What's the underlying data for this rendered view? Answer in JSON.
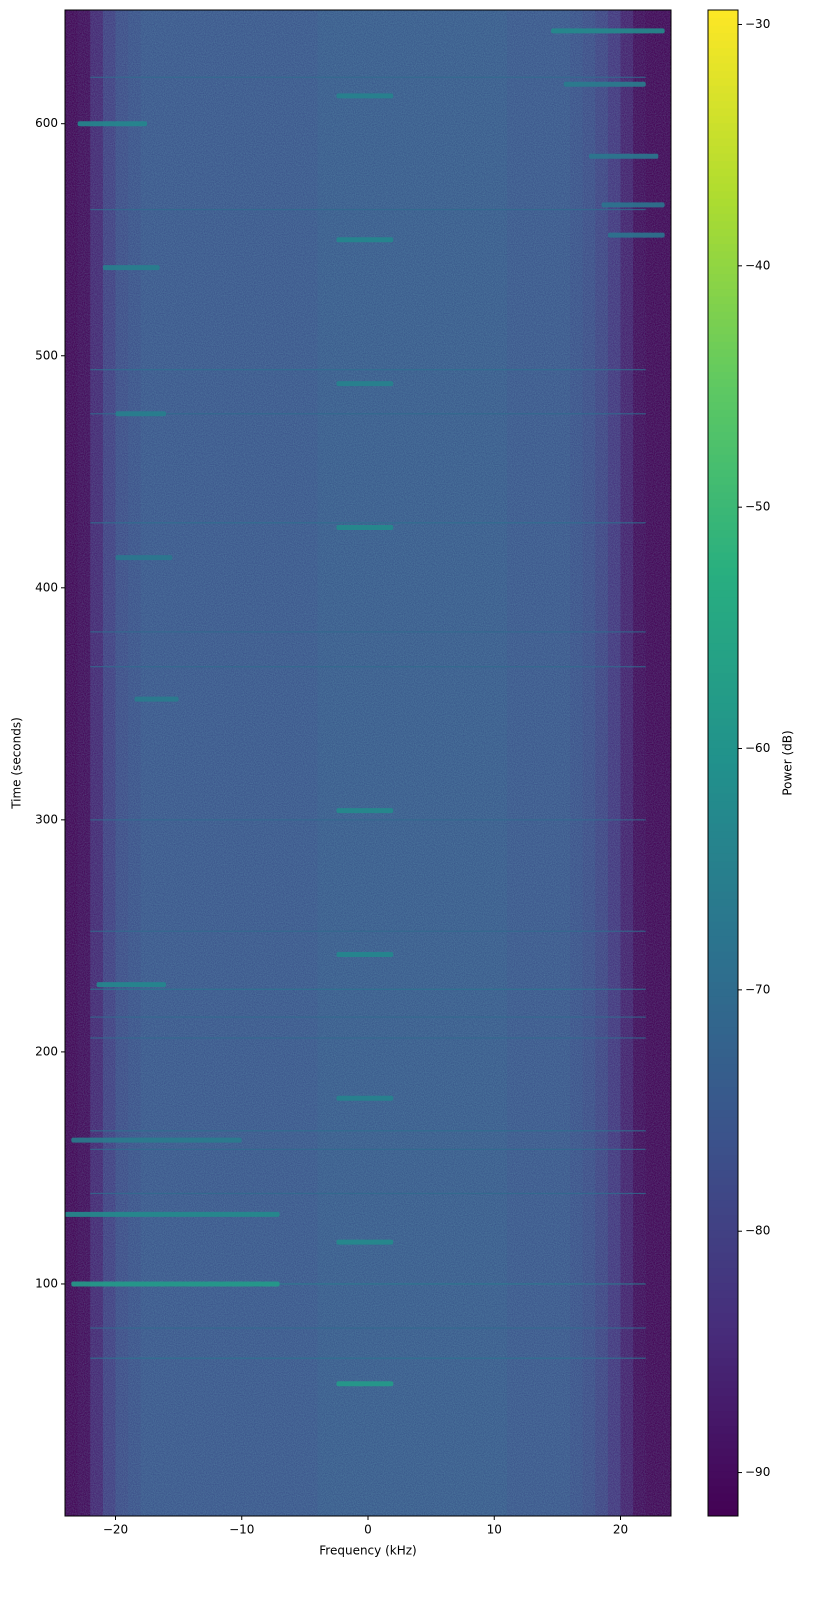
{
  "chart_data": {
    "type": "spectrogram",
    "xlabel": "Frequency (kHz)",
    "ylabel": "Time (seconds)",
    "colorbar_label": "Power (dB)",
    "colormap": "viridis",
    "xlim": [
      -24,
      24
    ],
    "ylim": [
      0,
      649
    ],
    "clim": [
      -91.8,
      -29.4
    ],
    "xticks": [
      {
        "value": -20,
        "label": "−20"
      },
      {
        "value": -10,
        "label": "−10"
      },
      0,
      10,
      20
    ],
    "yticks": [
      100,
      200,
      300,
      400,
      500,
      600
    ],
    "cticks": [
      {
        "value": -30,
        "label": "−30"
      },
      {
        "value": -40,
        "label": "−40"
      },
      {
        "value": -50,
        "label": "−50"
      },
      {
        "value": -60,
        "label": "−60"
      },
      {
        "value": -70,
        "label": "−70"
      },
      {
        "value": -80,
        "label": "−80"
      },
      {
        "value": -90,
        "label": "−90"
      }
    ],
    "x": [
      -23.5,
      -22.5,
      -21.5,
      -20.5,
      -19.5,
      -18.5,
      -17.5,
      -16.5,
      -15.5,
      -14.5,
      -13.5,
      -12.5,
      -11.5,
      -10.5,
      -9.5,
      -8.5,
      -7.5,
      -6.5,
      -5.5,
      -4.5,
      -3.5,
      -2.5,
      -1.5,
      -0.5,
      0.5,
      1.5,
      2.5,
      3.5,
      4.5,
      5.5,
      6.5,
      7.5,
      8.5,
      9.5,
      10.5,
      11.5,
      12.5,
      13.5,
      14.5,
      15.5,
      16.5,
      17.5,
      18.5,
      19.5,
      20.5,
      21.5,
      22.5,
      23.5
    ],
    "values": [
      -92,
      -91,
      -86,
      -81,
      -78,
      -77,
      -76,
      -76,
      -76,
      -76,
      -76,
      -76,
      -76,
      -76,
      -76,
      -76,
      -76,
      -76,
      -76,
      -76,
      -75,
      -75,
      -75,
      -75,
      -75,
      -75,
      -75,
      -75,
      -75,
      -75,
      -75,
      -75,
      -75,
      -75,
      -75,
      -76,
      -76,
      -76,
      -76,
      -76,
      -77,
      -78,
      -80,
      -83,
      -87,
      -91,
      -92,
      -92
    ],
    "events": [
      {
        "t": 57,
        "f": [
          -2.5,
          2
        ],
        "power": -58
      },
      {
        "t": 118,
        "f": [
          -2.5,
          2
        ],
        "power": -62
      },
      {
        "t": 180,
        "f": [
          -2.5,
          2
        ],
        "power": -64
      },
      {
        "t": 242,
        "f": [
          -2.5,
          2
        ],
        "power": -63
      },
      {
        "t": 304,
        "f": [
          -2.5,
          2
        ],
        "power": -62
      },
      {
        "t": 426,
        "f": [
          -2.5,
          2
        ],
        "power": -62
      },
      {
        "t": 488,
        "f": [
          -2.5,
          2
        ],
        "power": -64
      },
      {
        "t": 550,
        "f": [
          -2.5,
          2
        ],
        "power": -63
      },
      {
        "t": 612,
        "f": [
          -2.5,
          2
        ],
        "power": -64
      },
      {
        "t": 600,
        "f": [
          -23,
          -17.5
        ],
        "power": -63
      },
      {
        "t": 538,
        "f": [
          -21,
          -16.5
        ],
        "power": -65
      },
      {
        "t": 475,
        "f": [
          -20,
          -16
        ],
        "power": -65
      },
      {
        "t": 413,
        "f": [
          -20,
          -15.5
        ],
        "power": -67
      },
      {
        "t": 352,
        "f": [
          -18.5,
          -15
        ],
        "power": -66
      },
      {
        "t": 229,
        "f": [
          -21.5,
          -16
        ],
        "power": -63
      },
      {
        "t": 162,
        "f": [
          -23.5,
          -10
        ],
        "power": -66
      },
      {
        "t": 130,
        "f": [
          -24,
          -7
        ],
        "power": -62
      },
      {
        "t": 100,
        "f": [
          -23.5,
          -7
        ],
        "power": -58
      },
      {
        "t": 640,
        "f": [
          14.5,
          23.5
        ],
        "power": -62
      },
      {
        "t": 617,
        "f": [
          15.5,
          22
        ],
        "power": -66
      },
      {
        "t": 586,
        "f": [
          17.5,
          23
        ],
        "power": -67
      },
      {
        "t": 565,
        "f": [
          18.5,
          23.5
        ],
        "power": -68
      },
      {
        "t": 552,
        "f": [
          19,
          23.5
        ],
        "power": -68
      }
    ],
    "lines": [
      {
        "t": 68,
        "power": -68
      },
      {
        "t": 81,
        "power": -70
      },
      {
        "t": 100,
        "power": -66
      },
      {
        "t": 139,
        "power": -70
      },
      {
        "t": 158,
        "power": -70
      },
      {
        "t": 166,
        "power": -69
      },
      {
        "t": 206,
        "power": -70
      },
      {
        "t": 215,
        "power": -70
      },
      {
        "t": 227,
        "power": -68
      },
      {
        "t": 252,
        "power": -70
      },
      {
        "t": 300,
        "power": -70
      },
      {
        "t": 366,
        "power": -70
      },
      {
        "t": 381,
        "power": -70
      },
      {
        "t": 428,
        "power": -69
      },
      {
        "t": 475,
        "power": -70
      },
      {
        "t": 494,
        "power": -69
      },
      {
        "t": 563,
        "power": -70
      },
      {
        "t": 620,
        "power": -70
      }
    ]
  }
}
